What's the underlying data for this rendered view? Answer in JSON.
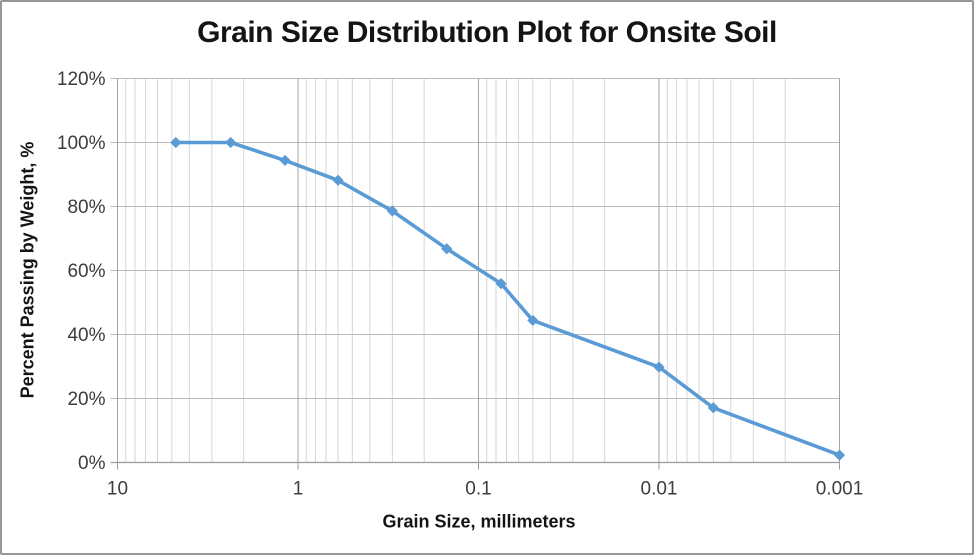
{
  "chart_data": {
    "type": "line",
    "title": "Grain Size Distribution Plot for Onsite Soil",
    "xlabel": "Grain Size, millimeters",
    "ylabel": "Percent Passing by Weight, %",
    "x_axis": {
      "scale": "log",
      "reversed": true,
      "left_value": 10,
      "right_value": 0.001,
      "tick_values": [
        10,
        1,
        0.1,
        0.01,
        0.001
      ],
      "tick_labels": [
        "10",
        "1",
        "0.1",
        "0.01",
        "0.001"
      ],
      "minor_gridlines": true
    },
    "y_axis": {
      "min": 0,
      "max": 120,
      "step": 20,
      "tick_labels": [
        "0%",
        "20%",
        "40%",
        "60%",
        "80%",
        "100%",
        "120%"
      ],
      "unit": "%"
    },
    "grid": "both",
    "legend": "none",
    "series": [
      {
        "name": "Percent Passing",
        "marker": "diamond",
        "points": [
          {
            "x": 4.75,
            "y": 100
          },
          {
            "x": 2.36,
            "y": 100
          },
          {
            "x": 1.18,
            "y": 94.4
          },
          {
            "x": 0.6,
            "y": 88.2
          },
          {
            "x": 0.3,
            "y": 78.6
          },
          {
            "x": 0.15,
            "y": 66.8
          },
          {
            "x": 0.075,
            "y": 55.9
          },
          {
            "x": 0.05,
            "y": 44.4
          },
          {
            "x": 0.01,
            "y": 29.8
          },
          {
            "x": 0.005,
            "y": 17.1
          },
          {
            "x": 0.001,
            "y": 2.3
          }
        ]
      }
    ]
  },
  "colors": {
    "series_line": "#5B9BD5",
    "minor_gridline": "#d6d6d6",
    "major_h_gridline": "#bcbcbc",
    "decade_gridline": "#a3a3a3",
    "axis_line": "#9b9b9b",
    "tick_text": "#3d3d3d",
    "title_text": "#141414",
    "frame_border": "#969696"
  }
}
